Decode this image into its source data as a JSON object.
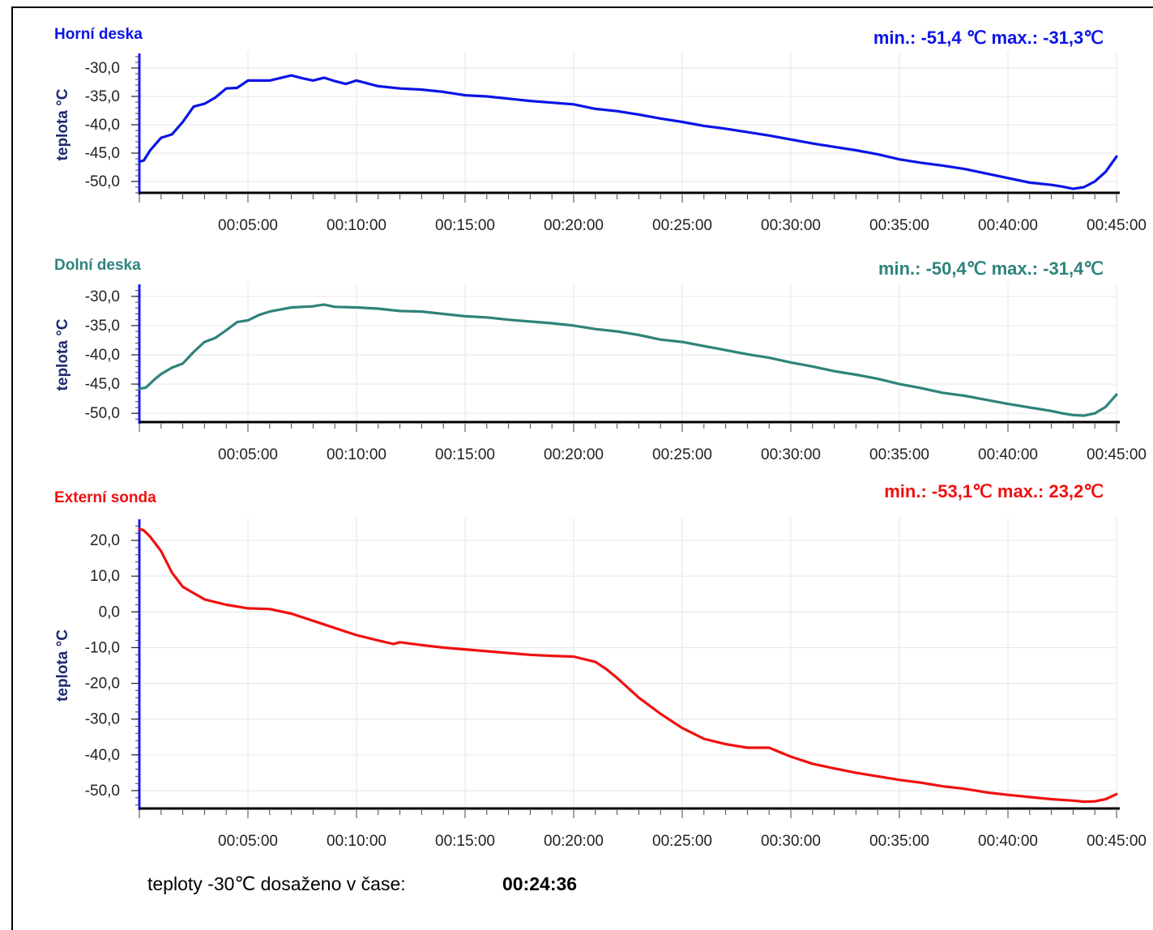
{
  "chart_data": [
    {
      "type": "line",
      "title": "Horní deska",
      "stats": "min.: -51,4 ℃  max.: -31,3℃",
      "ylabel": "teplota °C",
      "color": "#0a14e6",
      "ylim": [
        -52,
        -28
      ],
      "xlim": [
        0,
        45
      ],
      "yticks": [
        "-30,0",
        "-35,0",
        "-40,0",
        "-45,0",
        "-50,0"
      ],
      "ytick_values": [
        -30,
        -35,
        -40,
        -45,
        -50
      ],
      "xticks": [
        "00:05:00",
        "00:10:00",
        "00:15:00",
        "00:20:00",
        "00:25:00",
        "00:30:00",
        "00:35:00",
        "00:40:00",
        "00:45:00"
      ],
      "series": [
        {
          "x": [
            0,
            0.2,
            0.5,
            1,
            1.5,
            2,
            2.5,
            3,
            3.5,
            4,
            4.5,
            5,
            6,
            7,
            7.5,
            8,
            8.5,
            9,
            9.5,
            10,
            11,
            12,
            13,
            14,
            15,
            16,
            17,
            18,
            19,
            20,
            21,
            22,
            23,
            24,
            25,
            26,
            27,
            28,
            29,
            30,
            31,
            32,
            33,
            34,
            35,
            36,
            37,
            38,
            39,
            40,
            41,
            42,
            42.5,
            43,
            43.5,
            44,
            44.5,
            45
          ],
          "y": [
            -46.5,
            -46.3,
            -44.5,
            -42.3,
            -41.7,
            -39.5,
            -36.8,
            -36.3,
            -35.2,
            -33.6,
            -33.5,
            -32.2,
            -32.2,
            -31.3,
            -31.8,
            -32.2,
            -31.7,
            -32.3,
            -32.8,
            -32.2,
            -33.2,
            -33.6,
            -33.8,
            -34.2,
            -34.8,
            -35.0,
            -35.4,
            -35.8,
            -36.1,
            -36.4,
            -37.2,
            -37.6,
            -38.2,
            -38.9,
            -39.5,
            -40.2,
            -40.7,
            -41.3,
            -41.9,
            -42.6,
            -43.3,
            -43.9,
            -44.5,
            -45.2,
            -46.1,
            -46.7,
            -47.2,
            -47.8,
            -48.6,
            -49.4,
            -50.2,
            -50.6,
            -50.9,
            -51.3,
            -51.0,
            -50.0,
            -48.3,
            -45.6
          ]
        }
      ]
    },
    {
      "type": "line",
      "title": "Dolní deska",
      "stats": "min.: -50,4℃  max.: -31,4℃",
      "ylabel": "teplota °C",
      "color": "#2e837b",
      "ylim": [
        -51.5,
        -28.5
      ],
      "xlim": [
        0,
        45
      ],
      "yticks": [
        "-30,0",
        "-35,0",
        "-40,0",
        "-45,0",
        "-50,0"
      ],
      "ytick_values": [
        -30,
        -35,
        -40,
        -45,
        -50
      ],
      "xticks": [
        "00:05:00",
        "00:10:00",
        "00:15:00",
        "00:20:00",
        "00:25:00",
        "00:30:00",
        "00:35:00",
        "00:40:00",
        "00:45:00"
      ],
      "series": [
        {
          "x": [
            0,
            0.3,
            0.7,
            1,
            1.5,
            2,
            2.5,
            3,
            3.5,
            4,
            4.5,
            5,
            5.5,
            6,
            7,
            8,
            8.5,
            9,
            10,
            11,
            12,
            13,
            14,
            15,
            16,
            17,
            18,
            19,
            20,
            21,
            22,
            23,
            24,
            25,
            26,
            27,
            28,
            29,
            30,
            31,
            32,
            33,
            34,
            35,
            36,
            37,
            38,
            39,
            40,
            41,
            42,
            42.5,
            43,
            43.5,
            44,
            44.5,
            45
          ],
          "y": [
            -45.8,
            -45.6,
            -44.2,
            -43.3,
            -42.2,
            -41.5,
            -39.5,
            -37.8,
            -37.1,
            -35.8,
            -34.4,
            -34.1,
            -33.2,
            -32.6,
            -31.9,
            -31.7,
            -31.4,
            -31.8,
            -31.9,
            -32.1,
            -32.5,
            -32.6,
            -33.0,
            -33.4,
            -33.6,
            -34.0,
            -34.3,
            -34.6,
            -35.0,
            -35.6,
            -36.0,
            -36.6,
            -37.4,
            -37.8,
            -38.5,
            -39.2,
            -39.9,
            -40.5,
            -41.3,
            -42.0,
            -42.8,
            -43.4,
            -44.1,
            -45.0,
            -45.7,
            -46.5,
            -47.0,
            -47.7,
            -48.4,
            -49.0,
            -49.6,
            -50.0,
            -50.3,
            -50.4,
            -50.0,
            -48.9,
            -46.8
          ]
        }
      ]
    },
    {
      "type": "line",
      "title": "Externí sonda",
      "stats": "min.: -53,1℃  max.: 23,2℃",
      "ylabel": "teplota °C",
      "color": "#f01010",
      "ylim": [
        -55,
        25
      ],
      "xlim": [
        0,
        45
      ],
      "yticks": [
        "20,0",
        "10,0",
        "0,0",
        "-10,0",
        "-20,0",
        "-30,0",
        "-40,0",
        "-50,0"
      ],
      "ytick_values": [
        20,
        10,
        0,
        -10,
        -20,
        -30,
        -40,
        -50
      ],
      "xticks": [
        "00:05:00",
        "00:10:00",
        "00:15:00",
        "00:20:00",
        "00:25:00",
        "00:30:00",
        "00:35:00",
        "00:40:00",
        "00:45:00"
      ],
      "series": [
        {
          "x": [
            0,
            0.2,
            0.5,
            1,
            1.5,
            2,
            3,
            4,
            5,
            6,
            7,
            8,
            9,
            10,
            11,
            11.7,
            12,
            13,
            14,
            15,
            16,
            17,
            18,
            19,
            20,
            21,
            21.5,
            22,
            23,
            24,
            25,
            26,
            27,
            28,
            29,
            30,
            31,
            32,
            33,
            34,
            35,
            36,
            37,
            38,
            39,
            40,
            41,
            42,
            43,
            43.5,
            44,
            44.5,
            45
          ],
          "y": [
            23.2,
            22.8,
            21.0,
            17.0,
            11.0,
            7.0,
            3.5,
            2.0,
            1.0,
            0.8,
            -0.5,
            -2.5,
            -4.5,
            -6.5,
            -8.0,
            -9.0,
            -8.5,
            -9.3,
            -10.0,
            -10.5,
            -11.0,
            -11.5,
            -12.0,
            -12.3,
            -12.5,
            -14.0,
            -16.0,
            -18.5,
            -24.0,
            -28.5,
            -32.5,
            -35.5,
            -37.0,
            -38.0,
            -38.0,
            -40.5,
            -42.5,
            -43.8,
            -45.0,
            -46.0,
            -47.0,
            -47.8,
            -48.8,
            -49.5,
            -50.5,
            -51.2,
            -51.8,
            -52.4,
            -52.8,
            -53.1,
            -53.0,
            -52.4,
            -51.0
          ]
        }
      ]
    }
  ],
  "footer": {
    "label": "teploty -30℃ dosaženo v  čase:",
    "value": "00:24:36"
  }
}
